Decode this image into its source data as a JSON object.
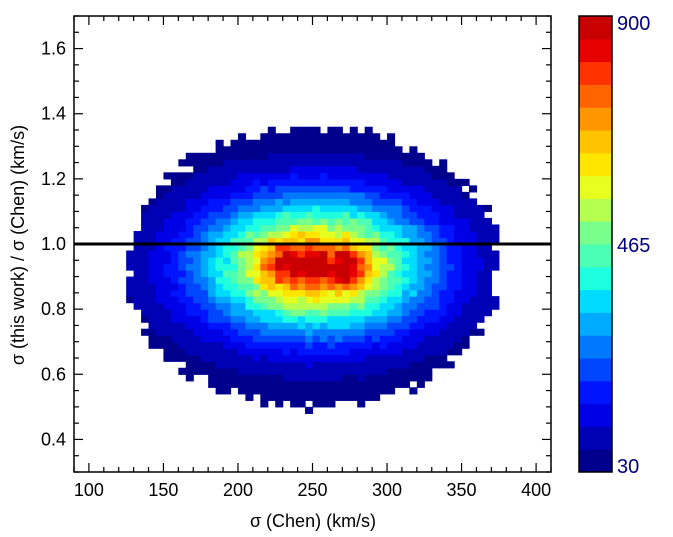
{
  "chart_data": {
    "type": "heatmap",
    "title": "",
    "xlabel": "σ (Chen) (km/s)",
    "ylabel": "σ (this work) / σ (Chen) (km/s)",
    "xlim": [
      90,
      410
    ],
    "ylim": [
      0.3,
      1.7
    ],
    "x_ticks": [
      100,
      150,
      200,
      250,
      300,
      350,
      400
    ],
    "x_tick_labels": [
      "100",
      "150",
      "200",
      "250",
      "300",
      "350",
      "400"
    ],
    "y_ticks": [
      0.4,
      0.6,
      0.8,
      1.0,
      1.2,
      1.4,
      1.6
    ],
    "y_tick_labels": [
      "0.4",
      "0.6",
      "0.8",
      "1.0",
      "1.2",
      "1.4",
      "1.6"
    ],
    "reference_line": {
      "y": 1.0,
      "color": "#000000"
    },
    "density_model": {
      "peak": 900,
      "min_shown": 30,
      "core": {
        "x_center": 252,
        "y_center": 0.935,
        "x_width": 55,
        "y_width": 0.15
      },
      "plateau_peaks": [
        {
          "x": 232,
          "y": 0.94
        },
        {
          "x": 252,
          "y": 0.93
        },
        {
          "x": 272,
          "y": 0.93
        }
      ],
      "bin_width": 5,
      "bin_height": 0.02,
      "x_range": [
        125,
        375
      ],
      "y_range": [
        0.48,
        1.36
      ]
    },
    "colorbar": {
      "min": 30,
      "max": 900,
      "tick_labels": [
        "30",
        "465",
        "900"
      ],
      "colors": [
        "#00008c",
        "#0000b4",
        "#0000e6",
        "#0014ff",
        "#0046ff",
        "#0078ff",
        "#00aaff",
        "#00dcff",
        "#1effe0",
        "#4bffb4",
        "#78ff8c",
        "#b4ff50",
        "#e6ff1e",
        "#ffe600",
        "#ffc300",
        "#ff9600",
        "#ff6400",
        "#ff3200",
        "#e60000",
        "#c80000"
      ]
    }
  }
}
